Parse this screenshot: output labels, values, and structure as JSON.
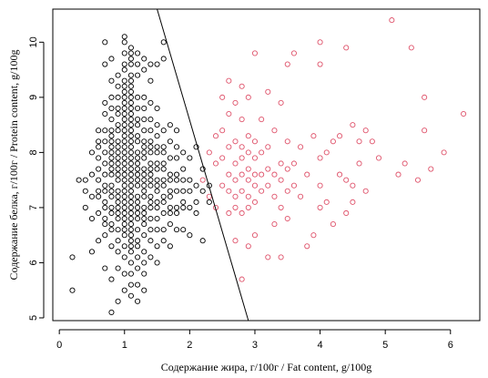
{
  "chart_data": {
    "type": "scatter",
    "xlabel": "Содержание жира, г/100г / Fat content, g/100g",
    "ylabel": "Содержание белка, г/100г / Protein content, g/100g",
    "xlim": [
      -0.1,
      6.45
    ],
    "ylim": [
      4.95,
      10.6
    ],
    "x_ticks": [
      0,
      1,
      2,
      3,
      4,
      5,
      6
    ],
    "y_ticks": [
      5,
      6,
      7,
      8,
      9,
      10
    ],
    "grid": false,
    "legend": "none",
    "colors": {
      "group_low_fat": "#000000",
      "group_high_fat": "#df536b",
      "line": "#000000"
    },
    "decision_line": {
      "x": [
        1.5,
        2.9
      ],
      "y": [
        10.6,
        4.95
      ]
    },
    "series": [
      {
        "color_key": "group_low_fat",
        "x": [
          0.2,
          0.2,
          0.3,
          0.4,
          0.4,
          0.4,
          0.5,
          0.5,
          0.5,
          0.5,
          0.5,
          0.6,
          0.6,
          0.6,
          0.6,
          0.6,
          0.6,
          0.6,
          0.6,
          0.6,
          0.6,
          0.7,
          0.7,
          0.7,
          0.7,
          0.7,
          0.7,
          0.7,
          0.7,
          0.7,
          0.7,
          0.7,
          0.7,
          0.7,
          0.7,
          0.7,
          0.7,
          0.7,
          0.8,
          0.8,
          0.8,
          0.8,
          0.8,
          0.8,
          0.8,
          0.8,
          0.8,
          0.8,
          0.8,
          0.8,
          0.8,
          0.8,
          0.8,
          0.8,
          0.8,
          0.8,
          0.8,
          0.8,
          0.8,
          0.8,
          0.8,
          0.8,
          0.9,
          0.9,
          0.9,
          0.9,
          0.9,
          0.9,
          0.9,
          0.9,
          0.9,
          0.9,
          0.9,
          0.9,
          0.9,
          0.9,
          0.9,
          0.9,
          0.9,
          0.9,
          0.9,
          0.9,
          0.9,
          0.9,
          0.9,
          0.9,
          0.9,
          0.9,
          1.0,
          1.0,
          1.0,
          1.0,
          1.0,
          1.0,
          1.0,
          1.0,
          1.0,
          1.0,
          1.0,
          1.0,
          1.0,
          1.0,
          1.0,
          1.0,
          1.0,
          1.0,
          1.0,
          1.0,
          1.0,
          1.0,
          1.0,
          1.0,
          1.0,
          1.0,
          1.0,
          1.0,
          1.0,
          1.0,
          1.0,
          1.0,
          1.0,
          1.0,
          1.0,
          1.0,
          1.0,
          1.0,
          1.1,
          1.1,
          1.1,
          1.1,
          1.1,
          1.1,
          1.1,
          1.1,
          1.1,
          1.1,
          1.1,
          1.1,
          1.1,
          1.1,
          1.1,
          1.1,
          1.1,
          1.1,
          1.1,
          1.1,
          1.1,
          1.1,
          1.1,
          1.1,
          1.1,
          1.1,
          1.1,
          1.1,
          1.1,
          1.1,
          1.1,
          1.1,
          1.1,
          1.1,
          1.1,
          1.1,
          1.1,
          1.1,
          1.1,
          1.1,
          1.1,
          1.2,
          1.2,
          1.2,
          1.2,
          1.2,
          1.2,
          1.2,
          1.2,
          1.2,
          1.2,
          1.2,
          1.2,
          1.2,
          1.2,
          1.2,
          1.2,
          1.2,
          1.2,
          1.2,
          1.2,
          1.2,
          1.2,
          1.2,
          1.2,
          1.2,
          1.2,
          1.2,
          1.2,
          1.3,
          1.3,
          1.3,
          1.3,
          1.3,
          1.3,
          1.3,
          1.3,
          1.3,
          1.3,
          1.3,
          1.3,
          1.3,
          1.3,
          1.3,
          1.3,
          1.3,
          1.3,
          1.3,
          1.3,
          1.3,
          1.3,
          1.3,
          1.3,
          1.3,
          1.4,
          1.4,
          1.4,
          1.4,
          1.4,
          1.4,
          1.4,
          1.4,
          1.4,
          1.4,
          1.4,
          1.4,
          1.4,
          1.4,
          1.4,
          1.4,
          1.4,
          1.4,
          1.4,
          1.4,
          1.5,
          1.5,
          1.5,
          1.5,
          1.5,
          1.5,
          1.5,
          1.5,
          1.5,
          1.5,
          1.5,
          1.5,
          1.5,
          1.5,
          1.5,
          1.5,
          1.5,
          1.6,
          1.6,
          1.6,
          1.6,
          1.6,
          1.6,
          1.6,
          1.6,
          1.6,
          1.6,
          1.6,
          1.6,
          1.6,
          1.6,
          1.7,
          1.7,
          1.7,
          1.7,
          1.7,
          1.7,
          1.7,
          1.7,
          1.7,
          1.7,
          1.7,
          1.8,
          1.8,
          1.8,
          1.8,
          1.8,
          1.8,
          1.8,
          1.8,
          1.8,
          1.9,
          1.9,
          1.9,
          1.9,
          1.9,
          1.9,
          1.9,
          2.0,
          2.0,
          2.0,
          2.0,
          2.0,
          2.1,
          2.1,
          2.1,
          2.1,
          2.2,
          2.2,
          2.2,
          2.3,
          2.3
        ],
        "y": [
          5.5,
          6.1,
          7.5,
          7.0,
          7.3,
          7.5,
          6.2,
          6.8,
          7.2,
          7.6,
          8.0,
          6.4,
          6.9,
          7.2,
          7.3,
          7.5,
          7.7,
          7.9,
          8.1,
          8.2,
          8.4,
          5.9,
          6.5,
          6.7,
          6.8,
          7.0,
          7.1,
          7.3,
          7.4,
          7.6,
          7.8,
          8.0,
          8.2,
          8.4,
          8.7,
          8.9,
          9.6,
          10.0,
          5.1,
          5.7,
          6.3,
          6.6,
          6.7,
          6.9,
          7.0,
          7.2,
          7.3,
          7.4,
          7.6,
          7.7,
          7.8,
          7.9,
          8.0,
          8.1,
          8.2,
          8.3,
          8.4,
          8.6,
          8.8,
          9.0,
          9.3,
          9.7,
          5.3,
          5.9,
          6.2,
          6.4,
          6.6,
          6.8,
          6.9,
          7.0,
          7.1,
          7.2,
          7.3,
          7.5,
          7.6,
          7.7,
          7.8,
          7.9,
          8.0,
          8.1,
          8.2,
          8.4,
          8.5,
          8.7,
          8.8,
          9.0,
          9.2,
          9.4,
          5.5,
          5.8,
          6.1,
          6.3,
          6.5,
          6.6,
          6.7,
          6.8,
          6.9,
          7.0,
          7.1,
          7.2,
          7.3,
          7.4,
          7.5,
          7.6,
          7.7,
          7.8,
          7.9,
          8.0,
          8.1,
          8.2,
          8.3,
          8.4,
          8.5,
          8.6,
          8.7,
          8.8,
          8.9,
          9.0,
          9.1,
          9.2,
          9.3,
          9.5,
          9.6,
          9.8,
          10.0,
          10.1,
          5.4,
          5.6,
          5.8,
          6.0,
          6.2,
          6.3,
          6.4,
          6.5,
          6.6,
          6.7,
          6.8,
          6.9,
          7.0,
          7.1,
          7.2,
          7.3,
          7.4,
          7.5,
          7.6,
          7.7,
          7.8,
          7.9,
          8.0,
          8.1,
          8.2,
          8.3,
          8.4,
          8.5,
          8.6,
          8.7,
          8.8,
          8.9,
          9.0,
          9.1,
          9.2,
          9.3,
          9.4,
          9.6,
          9.7,
          9.8,
          9.9,
          5.3,
          5.6,
          5.9,
          6.1,
          6.3,
          6.4,
          6.6,
          6.8,
          6.9,
          7.0,
          7.1,
          7.2,
          7.4,
          7.5,
          7.6,
          7.7,
          7.8,
          7.9,
          8.0,
          8.2,
          8.3,
          8.5,
          8.6,
          8.8,
          9.0,
          9.4,
          9.6,
          9.8,
          5.5,
          5.8,
          6.0,
          6.2,
          6.5,
          6.7,
          6.8,
          6.9,
          7.0,
          7.2,
          7.3,
          7.4,
          7.5,
          7.6,
          7.7,
          7.9,
          8.0,
          8.1,
          8.2,
          8.4,
          8.6,
          8.8,
          9.0,
          9.5,
          9.7,
          6.1,
          6.4,
          6.6,
          6.8,
          7.0,
          7.1,
          7.2,
          7.4,
          7.5,
          7.6,
          7.7,
          7.8,
          8.0,
          8.1,
          8.2,
          8.4,
          8.6,
          8.9,
          9.3,
          9.6,
          6.0,
          6.3,
          6.6,
          6.8,
          7.0,
          7.1,
          7.3,
          7.4,
          7.5,
          7.7,
          7.8,
          8.0,
          8.1,
          8.3,
          8.5,
          8.8,
          9.6,
          6.4,
          6.6,
          6.9,
          7.1,
          7.2,
          7.4,
          7.5,
          7.7,
          7.8,
          8.0,
          8.1,
          8.4,
          9.7,
          10.0,
          6.3,
          6.7,
          6.9,
          7.0,
          7.2,
          7.3,
          7.5,
          7.6,
          7.9,
          8.2,
          8.5,
          6.6,
          6.9,
          7.0,
          7.3,
          7.5,
          7.6,
          7.9,
          8.1,
          8.4,
          6.6,
          7.0,
          7.1,
          7.3,
          7.5,
          7.7,
          8.0,
          6.5,
          7.0,
          7.3,
          7.5,
          7.9,
          6.9,
          7.1,
          7.4,
          8.1,
          6.4,
          7.3,
          7.7,
          7.1,
          7.4
        ]
      },
      {
        "color_key": "group_high_fat",
        "x": [
          2.2,
          2.3,
          2.3,
          2.4,
          2.4,
          2.4,
          2.5,
          2.5,
          2.5,
          2.5,
          2.6,
          2.6,
          2.6,
          2.6,
          2.6,
          2.6,
          2.7,
          2.7,
          2.7,
          2.7,
          2.7,
          2.7,
          2.7,
          2.8,
          2.8,
          2.8,
          2.8,
          2.8,
          2.8,
          2.8,
          2.8,
          2.9,
          2.9,
          2.9,
          2.9,
          2.9,
          2.9,
          2.9,
          2.9,
          3.0,
          3.0,
          3.0,
          3.0,
          3.0,
          3.0,
          3.0,
          3.1,
          3.1,
          3.1,
          3.1,
          3.2,
          3.2,
          3.2,
          3.2,
          3.2,
          3.3,
          3.3,
          3.3,
          3.3,
          3.4,
          3.4,
          3.4,
          3.4,
          3.4,
          3.5,
          3.5,
          3.5,
          3.5,
          3.5,
          3.6,
          3.6,
          3.6,
          3.7,
          3.7,
          3.8,
          3.8,
          3.9,
          3.9,
          4.0,
          4.0,
          4.0,
          4.0,
          4.0,
          4.1,
          4.1,
          4.2,
          4.2,
          4.3,
          4.3,
          4.4,
          4.4,
          4.4,
          4.5,
          4.5,
          4.5,
          4.6,
          4.6,
          4.7,
          4.7,
          4.8,
          4.9,
          5.1,
          5.2,
          5.3,
          5.4,
          5.5,
          5.6,
          5.6,
          5.7,
          5.9,
          6.2
        ],
        "y": [
          7.5,
          7.2,
          8.0,
          7.0,
          7.8,
          8.3,
          7.4,
          7.9,
          8.4,
          9.0,
          6.9,
          7.3,
          7.6,
          8.1,
          8.7,
          9.3,
          6.4,
          7.0,
          7.2,
          7.5,
          7.8,
          8.2,
          8.9,
          5.7,
          6.9,
          7.3,
          7.6,
          7.9,
          8.1,
          8.6,
          9.2,
          6.3,
          7.0,
          7.2,
          7.5,
          7.7,
          8.0,
          8.3,
          9.0,
          6.5,
          7.1,
          7.4,
          7.6,
          7.9,
          8.2,
          9.8,
          7.3,
          7.6,
          8.0,
          8.6,
          6.1,
          7.4,
          7.7,
          8.1,
          9.1,
          6.7,
          7.2,
          7.6,
          8.4,
          6.1,
          7.0,
          7.5,
          7.8,
          8.9,
          6.8,
          7.3,
          7.7,
          8.2,
          9.6,
          7.4,
          7.8,
          9.8,
          7.2,
          8.1,
          6.3,
          7.6,
          6.5,
          8.3,
          7.0,
          7.4,
          7.9,
          9.6,
          10.0,
          7.1,
          8.0,
          6.7,
          8.2,
          7.6,
          8.3,
          6.9,
          7.5,
          9.9,
          7.1,
          7.4,
          8.5,
          7.8,
          8.2,
          7.3,
          8.4,
          8.2,
          7.9,
          10.4,
          7.6,
          7.8,
          9.9,
          7.5,
          8.4,
          9.0,
          7.7,
          8.0,
          8.7
        ]
      }
    ]
  }
}
